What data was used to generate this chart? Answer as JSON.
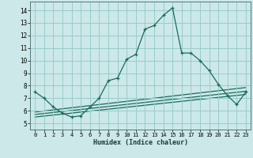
{
  "xlabel": "Humidex (Indice chaleur)",
  "bg_color": "#cce8e8",
  "grid_color": "#99cccc",
  "line_color": "#1a6b5a",
  "xlim": [
    -0.5,
    23.5
  ],
  "ylim": [
    4.5,
    14.7
  ],
  "xticks": [
    0,
    1,
    2,
    3,
    4,
    5,
    6,
    7,
    8,
    9,
    10,
    11,
    12,
    13,
    14,
    15,
    16,
    17,
    18,
    19,
    20,
    21,
    22,
    23
  ],
  "yticks": [
    5,
    6,
    7,
    8,
    9,
    10,
    11,
    12,
    13,
    14
  ],
  "main_x": [
    0,
    1,
    2,
    3,
    4,
    5,
    6,
    7,
    8,
    9,
    10,
    11,
    12,
    13,
    14,
    15,
    16,
    17,
    18,
    19,
    20,
    21,
    22,
    23
  ],
  "main_y": [
    7.5,
    7.0,
    6.3,
    5.8,
    5.5,
    5.6,
    6.3,
    7.0,
    8.4,
    8.6,
    10.1,
    10.5,
    12.5,
    12.8,
    13.6,
    14.2,
    10.6,
    10.6,
    10.0,
    9.2,
    8.1,
    7.2,
    6.5,
    7.5
  ],
  "band_lines": [
    [
      5.5,
      7.3
    ],
    [
      5.7,
      7.55
    ],
    [
      5.9,
      7.85
    ]
  ]
}
